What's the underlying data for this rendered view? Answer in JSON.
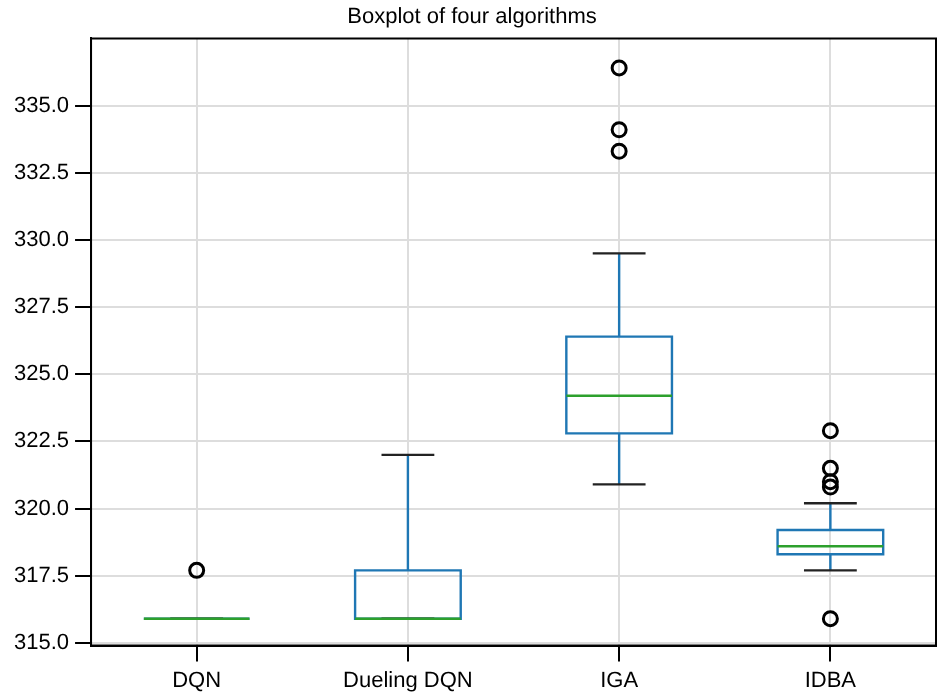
{
  "chart_data": {
    "type": "box",
    "title": "Boxplot of four algorithms",
    "categories": [
      "DQN",
      "Dueling DQN",
      "IGA",
      "IDBA"
    ],
    "color": "#1f77b4",
    "boxes": [
      {
        "low": 315.9,
        "q1": 315.9,
        "median": 315.9,
        "q3": 315.9,
        "high": 315.9,
        "outliers": [
          317.7
        ]
      },
      {
        "low": 315.9,
        "q1": 315.9,
        "median": 315.9,
        "q3": 317.7,
        "high": 322.0
      },
      {
        "low": 320.9,
        "q1": 322.8,
        "median": 324.2,
        "q3": 326.4,
        "high": 329.5,
        "outliers": [
          333.3,
          334.1,
          336.4
        ]
      },
      {
        "low": 317.7,
        "q1": 318.3,
        "median": 318.6,
        "q3": 319.2,
        "high": 320.2,
        "outliers": [
          315.9,
          320.8,
          321.0,
          321.5,
          322.9
        ]
      }
    ],
    "ylim": [
      314.9,
      337.5
    ],
    "yticks": [
      {
        "value": 315,
        "label": "315.0"
      },
      {
        "value": 317.5,
        "label": "317.5"
      },
      {
        "value": 320,
        "label": "320.0"
      },
      {
        "value": 322.5,
        "label": "322.5"
      },
      {
        "value": 325,
        "label": "325.0"
      },
      {
        "value": 327.5,
        "label": "327.5"
      },
      {
        "value": 330,
        "label": "330.0"
      },
      {
        "value": 332.5,
        "label": "332.5"
      },
      {
        "value": 335,
        "label": "335.0"
      }
    ],
    "grid": true
  }
}
